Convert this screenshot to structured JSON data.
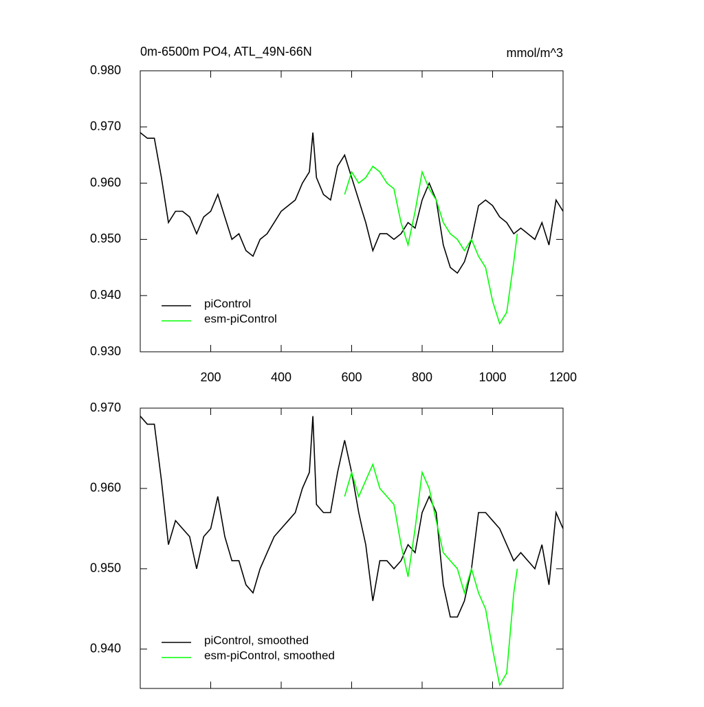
{
  "chart_data": [
    {
      "type": "line",
      "title": "0m-6500m PO4, ATL_49N-66N",
      "units": "mmol/m^3",
      "xlim": [
        0,
        1200
      ],
      "xticks": [
        200,
        400,
        600,
        800,
        1000,
        1200
      ],
      "show_xtick_labels": true,
      "ylim": [
        0.93,
        0.98
      ],
      "yticks": [
        {
          "value": 0.93,
          "label": "0.930"
        },
        {
          "value": 0.94,
          "label": "0.940"
        },
        {
          "value": 0.95,
          "label": "0.950"
        },
        {
          "value": 0.96,
          "label": "0.960"
        },
        {
          "value": 0.97,
          "label": "0.970"
        },
        {
          "value": 0.98,
          "label": "0.980"
        }
      ],
      "legend": "lower left",
      "series": [
        {
          "name": "piControl",
          "color": "#000000",
          "x": [
            0,
            20,
            40,
            60,
            80,
            100,
            120,
            140,
            160,
            180,
            200,
            220,
            240,
            260,
            280,
            300,
            320,
            340,
            360,
            380,
            400,
            420,
            440,
            460,
            480,
            490,
            500,
            520,
            540,
            560,
            580,
            600,
            620,
            640,
            660,
            680,
            700,
            720,
            740,
            760,
            780,
            800,
            820,
            840,
            860,
            880,
            900,
            920,
            940,
            960,
            980,
            1000,
            1020,
            1040,
            1060,
            1080,
            1100,
            1120,
            1140,
            1160,
            1180,
            1200
          ],
          "values": [
            0.969,
            0.968,
            0.968,
            0.961,
            0.953,
            0.955,
            0.955,
            0.954,
            0.951,
            0.954,
            0.955,
            0.958,
            0.954,
            0.95,
            0.951,
            0.948,
            0.947,
            0.95,
            0.951,
            0.953,
            0.955,
            0.956,
            0.957,
            0.96,
            0.962,
            0.969,
            0.961,
            0.958,
            0.957,
            0.963,
            0.965,
            0.961,
            0.957,
            0.953,
            0.948,
            0.951,
            0.951,
            0.95,
            0.951,
            0.953,
            0.952,
            0.957,
            0.96,
            0.957,
            0.949,
            0.945,
            0.944,
            0.946,
            0.95,
            0.956,
            0.957,
            0.956,
            0.954,
            0.953,
            0.951,
            0.952,
            0.951,
            0.95,
            0.953,
            0.949,
            0.957,
            0.955
          ]
        },
        {
          "name": "esm-piControl",
          "color": "#00ff00",
          "x": [
            580,
            600,
            620,
            640,
            660,
            680,
            700,
            720,
            740,
            760,
            780,
            800,
            820,
            840,
            860,
            880,
            900,
            920,
            940,
            960,
            980,
            1000,
            1020,
            1040,
            1060,
            1070
          ],
          "values": [
            0.958,
            0.962,
            0.96,
            0.961,
            0.963,
            0.962,
            0.96,
            0.959,
            0.953,
            0.949,
            0.955,
            0.962,
            0.959,
            0.957,
            0.953,
            0.951,
            0.95,
            0.948,
            0.95,
            0.947,
            0.945,
            0.939,
            0.935,
            0.937,
            0.946,
            0.951
          ]
        }
      ]
    },
    {
      "type": "line",
      "xlim": [
        0,
        1200
      ],
      "xticks": [
        200,
        400,
        600,
        800,
        1000,
        1200
      ],
      "show_xtick_labels": false,
      "ylim": [
        0.9351,
        0.97
      ],
      "yticks": [
        {
          "value": 0.94,
          "label": "0.940"
        },
        {
          "value": 0.95,
          "label": "0.950"
        },
        {
          "value": 0.96,
          "label": "0.960"
        },
        {
          "value": 0.97,
          "label": "0.970"
        }
      ],
      "legend": "lower left",
      "series": [
        {
          "name": "piControl, smoothed",
          "color": "#000000",
          "x": [
            0,
            20,
            40,
            60,
            80,
            100,
            120,
            140,
            160,
            180,
            200,
            220,
            240,
            260,
            280,
            300,
            320,
            340,
            360,
            380,
            400,
            420,
            440,
            460,
            480,
            490,
            500,
            520,
            540,
            560,
            580,
            600,
            620,
            640,
            660,
            680,
            700,
            720,
            740,
            760,
            780,
            800,
            820,
            840,
            860,
            880,
            900,
            920,
            940,
            960,
            980,
            1000,
            1020,
            1040,
            1060,
            1080,
            1100,
            1120,
            1140,
            1160,
            1180,
            1200
          ],
          "values": [
            0.969,
            0.968,
            0.968,
            0.961,
            0.953,
            0.956,
            0.955,
            0.954,
            0.95,
            0.954,
            0.955,
            0.959,
            0.954,
            0.951,
            0.951,
            0.948,
            0.947,
            0.95,
            0.952,
            0.954,
            0.955,
            0.956,
            0.957,
            0.96,
            0.962,
            0.969,
            0.958,
            0.957,
            0.957,
            0.962,
            0.966,
            0.962,
            0.957,
            0.953,
            0.946,
            0.951,
            0.951,
            0.95,
            0.951,
            0.953,
            0.952,
            0.957,
            0.959,
            0.957,
            0.948,
            0.944,
            0.944,
            0.946,
            0.95,
            0.957,
            0.957,
            0.956,
            0.955,
            0.953,
            0.951,
            0.952,
            0.951,
            0.95,
            0.953,
            0.948,
            0.957,
            0.955
          ]
        },
        {
          "name": "esm-piControl, smoothed",
          "color": "#00ff00",
          "x": [
            580,
            600,
            620,
            640,
            660,
            680,
            700,
            720,
            740,
            760,
            780,
            800,
            820,
            840,
            860,
            880,
            900,
            920,
            940,
            960,
            980,
            1000,
            1020,
            1040,
            1060,
            1070
          ],
          "values": [
            0.959,
            0.962,
            0.959,
            0.961,
            0.963,
            0.96,
            0.959,
            0.958,
            0.953,
            0.949,
            0.955,
            0.962,
            0.96,
            0.956,
            0.952,
            0.951,
            0.95,
            0.947,
            0.95,
            0.947,
            0.945,
            0.94,
            0.9355,
            0.937,
            0.947,
            0.95
          ]
        }
      ]
    }
  ]
}
